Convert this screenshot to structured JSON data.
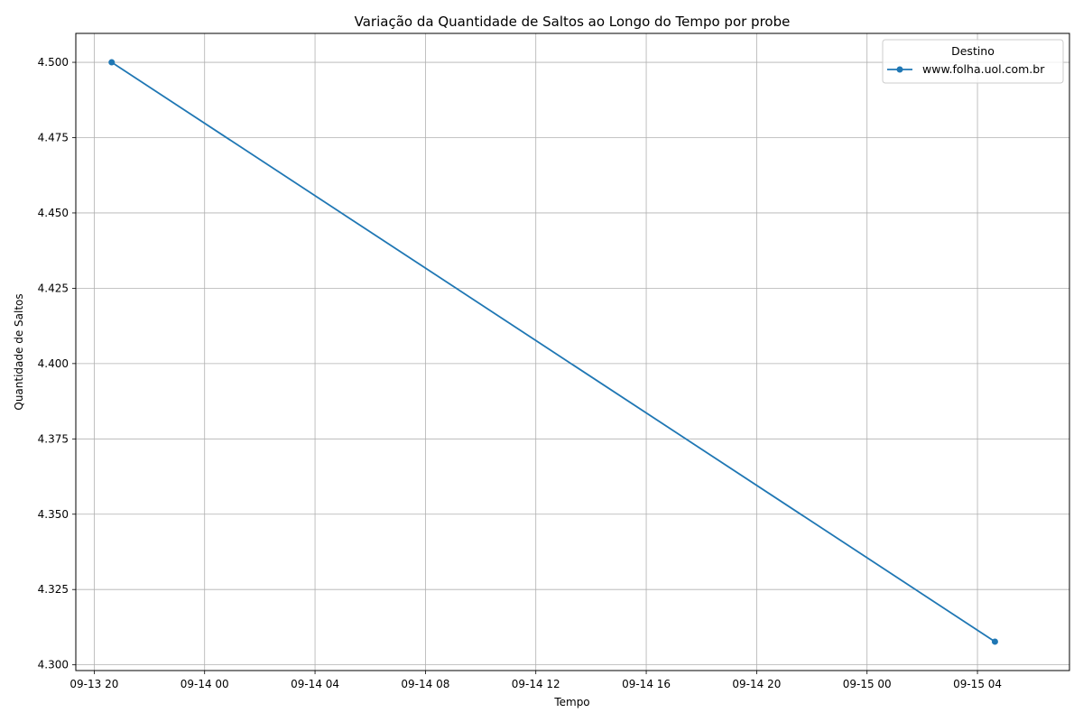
{
  "chart_data": {
    "type": "line",
    "title": "Variação da Quantidade de Saltos ao Longo do Tempo por probe",
    "xlabel": "Tempo",
    "ylabel": "Quantidade de Saltos",
    "x_type": "datetime",
    "xlim": [
      "2024-09-13T19:20",
      "2024-09-15T07:20"
    ],
    "ylim": [
      4.2981,
      4.5096
    ],
    "x_ticks": [
      "09-13 20",
      "09-14 00",
      "09-14 04",
      "09-14 08",
      "09-14 12",
      "09-14 16",
      "09-14 20",
      "09-15 00",
      "09-15 04"
    ],
    "y_ticks": [
      "4.300",
      "4.325",
      "4.350",
      "4.375",
      "4.400",
      "4.425",
      "4.450",
      "4.475",
      "4.500"
    ],
    "grid": true,
    "legend": {
      "title": "Destino",
      "placement": "top-right"
    },
    "series": [
      {
        "name": "www.folha.uol.com.br",
        "color": "#1f77b4",
        "marker": "circle",
        "points": [
          {
            "x": "2024-09-13T20:38",
            "y": 4.5
          },
          {
            "x": "2024-09-15T04:38",
            "y": 4.3077
          }
        ]
      }
    ]
  }
}
